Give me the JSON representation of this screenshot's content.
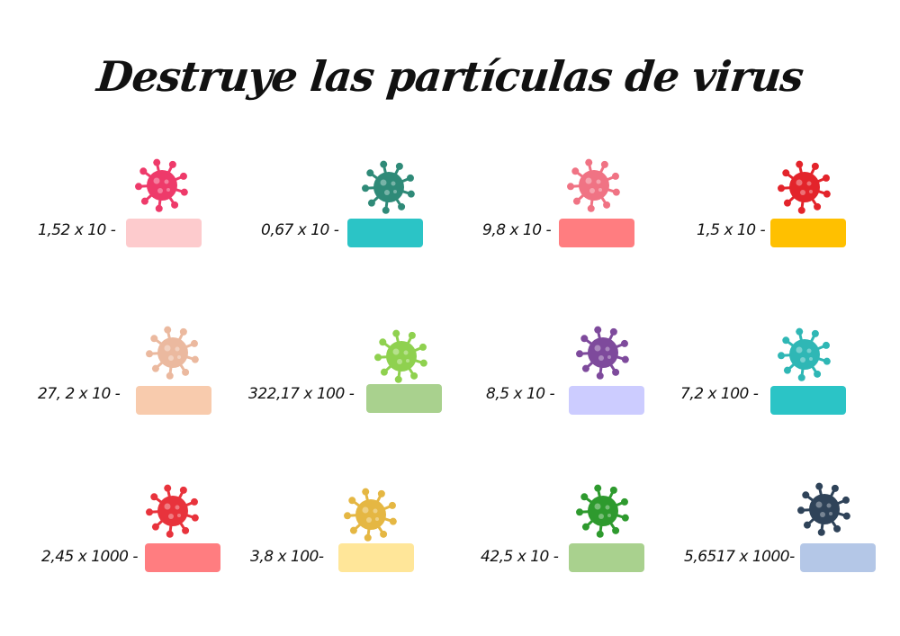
{
  "title": "Destruye las partículas de virus",
  "items": [
    {
      "expression": "1,52 x 10 -",
      "answer": "",
      "box_color": "#fdcbcd",
      "virus_color": "#ee3a6a",
      "virus_icon": "virus-icon"
    },
    {
      "expression": "0,67 x 10 -",
      "answer": "",
      "box_color": "#2bc4c6",
      "virus_color": "#2f8a78",
      "virus_icon": "virus-icon"
    },
    {
      "expression": "9,8 x 10 -",
      "answer": "",
      "box_color": "#ff7d80",
      "virus_color": "#f07384",
      "virus_icon": "virus-icon"
    },
    {
      "expression": "1,5 x 10 -",
      "answer": "",
      "box_color": "#ffc000",
      "virus_color": "#e3242b",
      "virus_icon": "virus-icon"
    },
    {
      "expression": "27, 2 x 10 -",
      "answer": "",
      "box_color": "#f8cbad",
      "virus_color": "#ebb99f",
      "virus_icon": "virus-icon"
    },
    {
      "expression": "322,17 x 100 -",
      "answer": "",
      "box_color": "#a9d18e",
      "virus_color": "#8fd14f",
      "virus_icon": "virus-icon"
    },
    {
      "expression": "8,5 x 10 -",
      "answer": "",
      "box_color": "#ccccff",
      "virus_color": "#7e4a9c",
      "virus_icon": "virus-icon"
    },
    {
      "expression": "7,2 x 100 -",
      "answer": "",
      "box_color": "#2bc4c6",
      "virus_color": "#2fb7b5",
      "virus_icon": "virus-icon"
    },
    {
      "expression": "2,45 x 1000 -",
      "answer": "",
      "box_color": "#ff7d80",
      "virus_color": "#e8333c",
      "virus_icon": "virus-icon"
    },
    {
      "expression": "3,8 x 100-",
      "answer": "",
      "box_color": "#ffe699",
      "virus_color": "#e5b743",
      "virus_icon": "virus-icon"
    },
    {
      "expression": "42,5 x 10 -",
      "answer": "",
      "box_color": "#a9d18e",
      "virus_color": "#2e9a2e",
      "virus_icon": "virus-icon"
    },
    {
      "expression": "5,6517 x 1000-",
      "answer": "",
      "box_color": "#b4c7e7",
      "virus_color": "#2f4359",
      "virus_icon": "virus-icon"
    }
  ]
}
